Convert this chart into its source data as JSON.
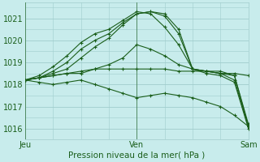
{
  "background_color": "#c8ecec",
  "plot_bg_color": "#c8ecec",
  "grid_color": "#a0cccc",
  "line_color": "#1a5e1a",
  "title": "Pression niveau de la mer( hPa )",
  "ylabel_ticks": [
    1016,
    1017,
    1018,
    1019,
    1020,
    1021
  ],
  "ylim": [
    1015.6,
    1021.7
  ],
  "xlim": [
    0,
    48
  ],
  "x_ticks": [
    0,
    24,
    48
  ],
  "x_tick_labels": [
    "Jeu",
    "Ven",
    "Sam"
  ],
  "series": [
    [
      0,
      1018.2,
      3,
      1018.3,
      6,
      1018.5,
      9,
      1018.7,
      12,
      1019.2,
      15,
      1019.7,
      18,
      1020.1,
      21,
      1020.7,
      24,
      1021.2,
      27,
      1021.3,
      30,
      1021.1,
      33,
      1020.3,
      36,
      1018.7,
      39,
      1018.5,
      42,
      1018.4,
      45,
      1018.1,
      48,
      1016.0
    ],
    [
      0,
      1018.2,
      3,
      1018.3,
      6,
      1018.6,
      9,
      1019.0,
      12,
      1019.6,
      15,
      1020.0,
      18,
      1020.3,
      21,
      1020.8,
      24,
      1021.2,
      27,
      1021.3,
      30,
      1021.2,
      33,
      1020.5,
      36,
      1018.7,
      39,
      1018.6,
      42,
      1018.5,
      45,
      1018.2,
      48,
      1016.1
    ],
    [
      0,
      1018.2,
      3,
      1018.4,
      6,
      1018.8,
      9,
      1019.3,
      12,
      1019.9,
      15,
      1020.3,
      18,
      1020.5,
      21,
      1020.9,
      24,
      1021.3,
      27,
      1021.2,
      30,
      1020.6,
      33,
      1019.8,
      36,
      1018.7,
      39,
      1018.6,
      42,
      1018.6,
      45,
      1018.4,
      48,
      1016.1
    ],
    [
      0,
      1018.2,
      3,
      1018.3,
      6,
      1018.4,
      9,
      1018.5,
      12,
      1018.6,
      15,
      1018.7,
      18,
      1018.7,
      21,
      1018.7,
      24,
      1018.7,
      27,
      1018.7,
      30,
      1018.7,
      33,
      1018.6,
      36,
      1018.6,
      39,
      1018.6,
      42,
      1018.5,
      45,
      1018.4,
      48,
      1016.2
    ],
    [
      0,
      1018.2,
      3,
      1018.3,
      6,
      1018.4,
      9,
      1018.5,
      12,
      1018.5,
      15,
      1018.7,
      18,
      1018.9,
      21,
      1019.2,
      24,
      1019.8,
      27,
      1019.6,
      30,
      1019.3,
      33,
      1018.9,
      36,
      1018.7,
      39,
      1018.6,
      42,
      1018.5,
      45,
      1018.5,
      48,
      1018.4
    ],
    [
      0,
      1018.2,
      3,
      1018.1,
      6,
      1018.0,
      9,
      1018.1,
      12,
      1018.2,
      15,
      1018.0,
      18,
      1017.8,
      21,
      1017.6,
      24,
      1017.4,
      27,
      1017.5,
      30,
      1017.6,
      33,
      1017.5,
      36,
      1017.4,
      39,
      1017.2,
      42,
      1017.0,
      45,
      1016.6,
      48,
      1016.1
    ]
  ]
}
